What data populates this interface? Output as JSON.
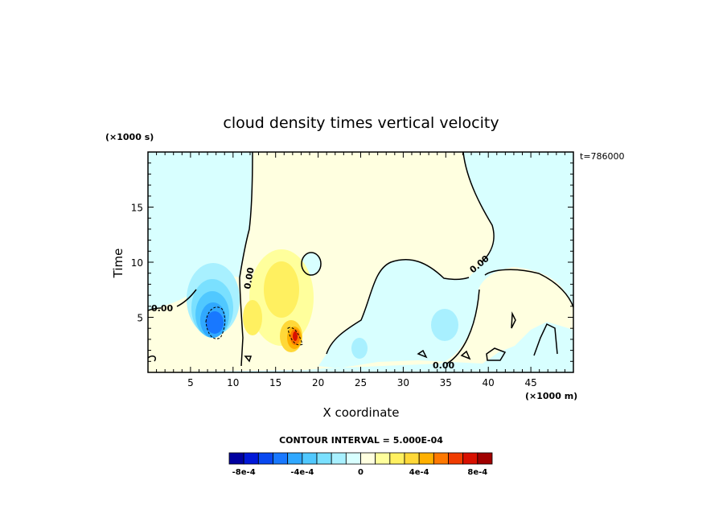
{
  "chart_data": {
    "type": "heatmap",
    "title": "cloud density times vertical velocity",
    "xlabel": "X coordinate",
    "ylabel": "Time",
    "x_unit": "(×1000 m)",
    "y_unit": "(×1000 s)",
    "time_stamp": "t=786000",
    "xlim": [
      0,
      50
    ],
    "ylim": [
      0,
      20
    ],
    "x_ticks": [
      5,
      10,
      15,
      20,
      25,
      30,
      35,
      40,
      45
    ],
    "y_ticks": [
      5,
      10,
      15
    ],
    "contour_interval_label": "CONTOUR INTERVAL = 5.000E-04",
    "colorbar": {
      "colors": [
        "#0000a0",
        "#0018d8",
        "#0848f0",
        "#1878ff",
        "#30a8ff",
        "#50c8ff",
        "#7ae0ff",
        "#a8f0ff",
        "#d8ffff",
        "#ffffe0",
        "#ffff9c",
        "#fff060",
        "#ffd838",
        "#ffb000",
        "#ff7800",
        "#f03c00",
        "#d81000",
        "#a00000"
      ],
      "tick_labels": [
        "-8e-4",
        "-4e-4",
        "0",
        "4e-4",
        "8e-4"
      ],
      "tick_values": [
        -0.0008,
        -0.0004,
        0,
        0.0004,
        0.0008
      ],
      "range": [
        -0.0009,
        0.0009
      ]
    },
    "zero_contour_label": "0.00",
    "fields": {
      "positive_background": "#ffffe0",
      "negative_background": "#d8ffff"
    },
    "features": [
      {
        "name": "downdraft core",
        "x": 8,
        "y": 4.5,
        "value": -0.0009
      },
      {
        "name": "updraft core",
        "x": 17,
        "y": 3.5,
        "value": 0.0009
      },
      {
        "name": "weak updraft",
        "x": 16,
        "y": 8,
        "value": 0.0002
      },
      {
        "name": "weak downdraft",
        "x": 35,
        "y": 4.5,
        "value": -0.0002
      }
    ]
  }
}
